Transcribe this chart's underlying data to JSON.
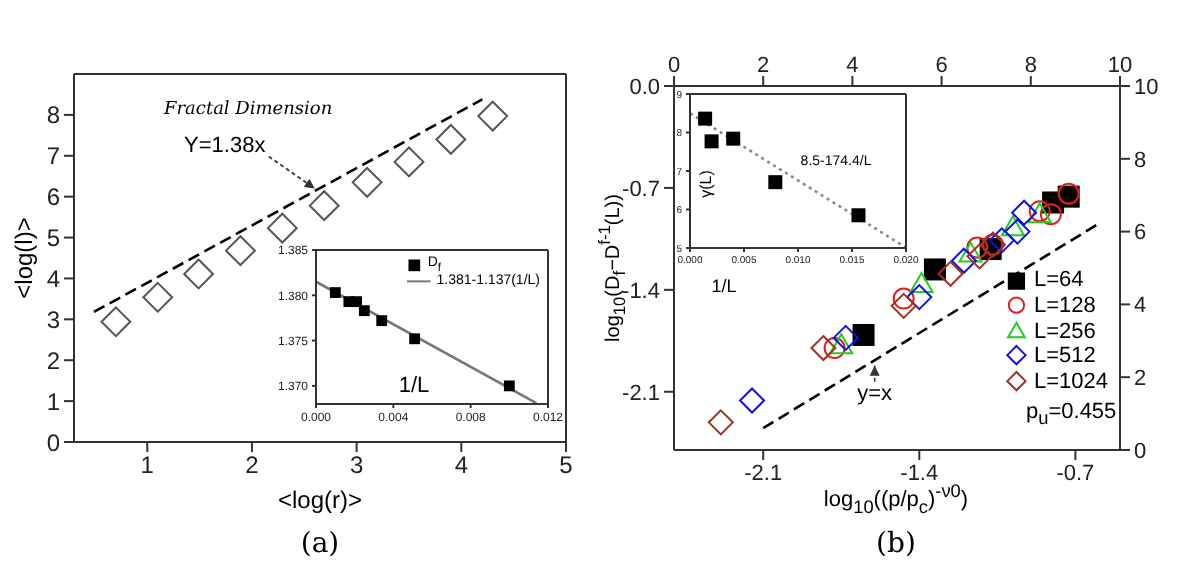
{
  "chart_data": [
    {
      "type": "scatter",
      "title": "Fractal Dimension",
      "xlabel": "<log(r)>",
      "ylabel": "<log(l)>",
      "xlim": [
        0.3,
        5
      ],
      "xticks": [
        1,
        2,
        3,
        4,
        5
      ],
      "ylim": [
        0,
        9
      ],
      "yticks": [
        0,
        1,
        2,
        3,
        4,
        5,
        6,
        7,
        8
      ],
      "marker": "diamond",
      "series": [
        {
          "color": "#555555",
          "x": [
            0.7,
            1.1,
            1.49,
            1.89,
            2.29,
            2.69,
            3.1,
            3.5,
            3.9,
            4.3
          ],
          "values": [
            2.94,
            3.54,
            4.11,
            4.68,
            5.23,
            5.78,
            6.35,
            6.85,
            7.4,
            7.97
          ]
        },
        {
          "type": "line",
          "color": "#000000",
          "line_style": "dashed",
          "marker": "none",
          "x": [
            0.49,
            4.2
          ],
          "values": [
            3.18,
            8.38
          ]
        }
      ],
      "annotations": [
        {
          "text": "Y=1.38x",
          "x": 2.6,
          "y": 6.2
        },
        "(a)"
      ]
    },
    {
      "type": "scatter",
      "xlabel": "1/L",
      "xlim": [
        0,
        0.012
      ],
      "xticks": [
        {
          "value": 0,
          "label": "0.000"
        },
        {
          "value": 0.004,
          "label": "0.004"
        },
        {
          "value": 0.008,
          "label": "0.008"
        },
        {
          "value": 0.012,
          "label": "0.012"
        }
      ],
      "ylim": [
        1.368,
        1.385
      ],
      "yticks": [
        {
          "value": 1.37,
          "label": "1.370"
        },
        {
          "value": 1.375,
          "label": "1.375"
        },
        {
          "value": 1.38,
          "label": "1.380"
        },
        {
          "value": 1.385,
          "label": "1.385"
        }
      ],
      "marker": "square",
      "legend": "top right",
      "series": [
        {
          "name": "D$_{f}$",
          "color": "#000000",
          "x": [
            0.001,
            0.0017,
            0.0021,
            0.0025,
            0.0034,
            0.0051,
            0.01
          ],
          "values": [
            1.3803,
            1.3793,
            1.3793,
            1.3783,
            1.3772,
            1.3752,
            1.37
          ]
        },
        {
          "name": "1.381-1.137(1/L)",
          "type": "line",
          "color": "#777777",
          "marker": "none",
          "x": [
            0,
            0.0114
          ],
          "values": [
            1.3815,
            1.3681
          ]
        }
      ]
    },
    {
      "type": "scatter",
      "xlabel": "log$_{10}$((p/p$_{c}$)$^{-ν0}$)",
      "ylabel": "log$_{10}$(D$_{f}$−D$^{f-1}$(L))",
      "xlim": [
        -2.5,
        -0.5
      ],
      "xticks": [
        -2.1,
        -1.4,
        -0.7
      ],
      "ylim": [
        -2.5,
        0
      ],
      "yticks": [
        -2.1,
        -1.4,
        -0.7,
        {
          "value": 0,
          "label": "0.0"
        }
      ],
      "x2lim": [
        0,
        10
      ],
      "x2ticks": [
        0,
        2,
        4,
        6,
        8,
        10
      ],
      "y2lim": [
        0,
        10
      ],
      "y2ticks": [
        0,
        2,
        4,
        6,
        8,
        10
      ],
      "legend": "bottom right",
      "series": [
        {
          "name": "L=64",
          "color": "#000000",
          "marker": "square",
          "x": [
            -1.65,
            -1.33,
            -1.08,
            -0.8,
            -0.73
          ],
          "values": [
            -1.71,
            -1.26,
            -1.12,
            -0.8,
            -0.76
          ]
        },
        {
          "name": "L=128",
          "color": "#e02020",
          "marker": "circle",
          "x": [
            -1.78,
            -1.47,
            -1.14,
            -1.07,
            -0.86,
            -0.81,
            -0.73
          ],
          "values": [
            -1.8,
            -1.46,
            -1.11,
            -1.09,
            -0.86,
            -0.88,
            -0.74
          ]
        },
        {
          "name": "L=256",
          "color": "#22cc22",
          "marker": "triangle",
          "x": [
            -1.75,
            -1.39,
            -1.17,
            -0.98,
            -0.86
          ],
          "values": [
            -1.78,
            -1.36,
            -1.15,
            -0.97,
            -0.88
          ]
        },
        {
          "name": "L=512",
          "color": "#1010ee",
          "marker": "diamond",
          "x": [
            -2.15,
            -1.73,
            -1.4,
            -1.2,
            -1.03,
            -0.96,
            -0.93
          ],
          "values": [
            -2.16,
            -1.73,
            -1.45,
            -1.2,
            -1.06,
            -1.0,
            -0.87
          ]
        },
        {
          "name": "L=1024",
          "color": "#a03020",
          "marker": "diamond",
          "x": [
            -2.29,
            -1.83,
            -1.47,
            -1.26,
            -1.13,
            -1.07
          ],
          "values": [
            -2.31,
            -1.8,
            -1.51,
            -1.29,
            -1.17,
            -1.09
          ]
        },
        {
          "type": "line",
          "color": "#000000",
          "line_style": "dashed",
          "marker": "none",
          "x": [
            -2.1,
            -0.6
          ],
          "values": [
            -2.35,
            -0.95
          ]
        }
      ],
      "annotations": [
        {
          "text": "y=x",
          "x": -1.6,
          "y": -1.88
        },
        "p$_{u}$=0.455",
        "(b)"
      ]
    },
    {
      "type": "scatter",
      "xlabel": "1/L",
      "ylabel": "γ(L)",
      "xlim": [
        0,
        0.02
      ],
      "xticks": [
        {
          "value": 0,
          "label": "0.000"
        },
        {
          "value": 0.005,
          "label": "0.005"
        },
        {
          "value": 0.01,
          "label": "0.010"
        },
        {
          "value": 0.015,
          "label": "0.015"
        },
        {
          "value": 0.02,
          "label": "0.020"
        }
      ],
      "ylim": [
        5,
        9
      ],
      "yticks": [
        5,
        6,
        7,
        8,
        9
      ],
      "marker": "square",
      "series": [
        {
          "color": "#000000",
          "x": [
            0.0014,
            0.002,
            0.004,
            0.0079,
            0.0156
          ],
          "values": [
            8.36,
            7.77,
            7.84,
            6.71,
            5.85
          ]
        },
        {
          "type": "line",
          "color": "#888888",
          "line_style": "dotted",
          "marker": "none",
          "x": [
            0,
            0.02
          ],
          "values": [
            8.5,
            5.01
          ]
        }
      ],
      "annotations": [
        {
          "text": "8.5-174.4/L",
          "x": 0.0095,
          "y": 6.85
        }
      ]
    }
  ]
}
